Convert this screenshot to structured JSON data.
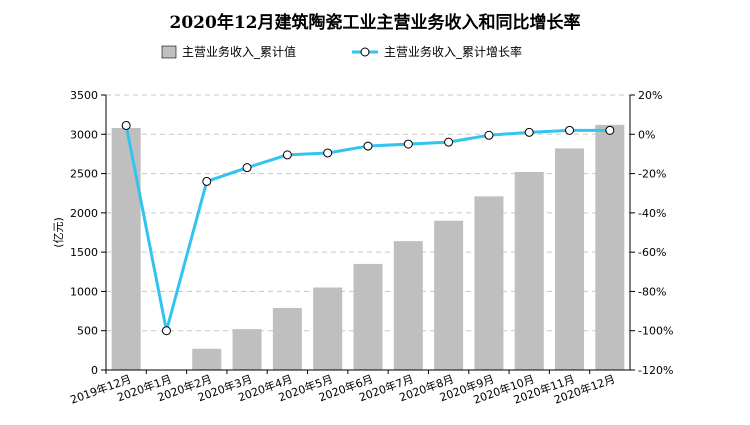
{
  "chart_data": {
    "type": "bar",
    "title": "2020年12月建筑陶瓷工业主营业务收入和同比增长率",
    "xlabel": "",
    "ylabel": "亿元",
    "y2label": "",
    "categories": [
      "2019年12月",
      "2020年1月",
      "2020年2月",
      "2020年3月",
      "2020年4月",
      "2020年5月",
      "2020年6月",
      "2020年7月",
      "2020年8月",
      "2020年9月",
      "2020年10月",
      "2020年11月",
      "2020年12月"
    ],
    "ylim": [
      0,
      3500
    ],
    "y2lim": [
      -120,
      20
    ],
    "yticks": [
      "0",
      "500",
      "1000",
      "1500",
      "2000",
      "2500",
      "3000",
      "3500"
    ],
    "y2ticks": [
      "-120%",
      "-100%",
      "-80%",
      "-60%",
      "-40%",
      "-20%",
      "0%",
      "20%"
    ],
    "grid": true,
    "legend_position": "top",
    "series": [
      {
        "name": "主营业务收入_累计值",
        "type": "bar",
        "axis": "left",
        "color": "#bfbfbf",
        "values": [
          3080,
          null,
          270,
          520,
          790,
          1050,
          1350,
          1640,
          1900,
          2210,
          2520,
          2820,
          3120
        ]
      },
      {
        "name": "主营业务收入_累计增长率",
        "type": "line",
        "axis": "right",
        "color": "#33c3ef",
        "values": [
          4.5,
          -100,
          -24,
          -17,
          -10.5,
          -9.5,
          -6,
          -5,
          -4,
          -0.5,
          1,
          2,
          2
        ]
      }
    ]
  }
}
